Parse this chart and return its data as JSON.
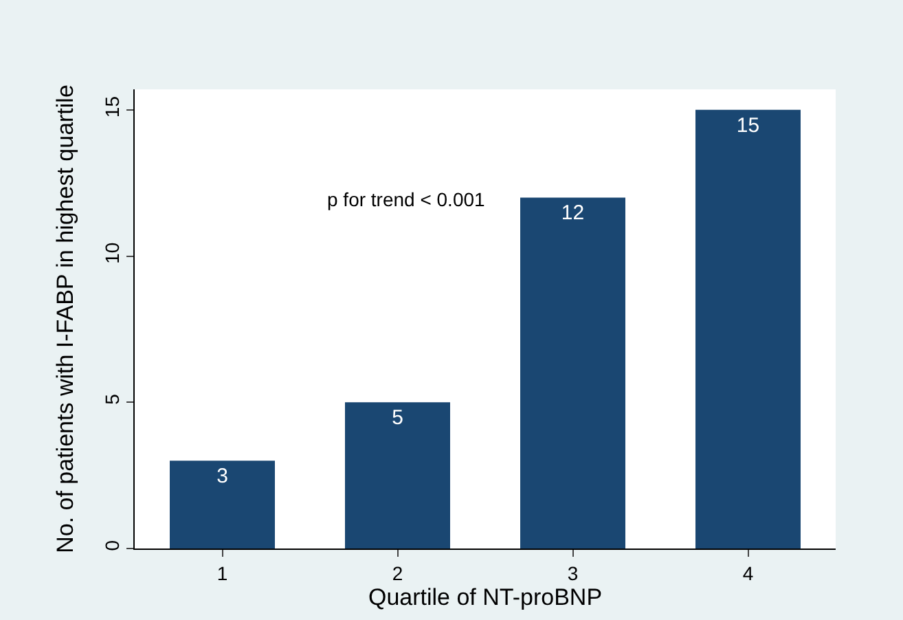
{
  "chart_data": {
    "type": "bar",
    "xlabel": "Quartile of NT-proBNP",
    "ylabel": "No. of patients with I-FABP in highest quartile",
    "categories": [
      "1",
      "2",
      "3",
      "4"
    ],
    "values": [
      3,
      5,
      12,
      15
    ],
    "color": "#1a4772",
    "ylim": [
      0,
      15.7
    ],
    "yticks": [
      0,
      5,
      10,
      15
    ],
    "data_labels": true,
    "annotations": [
      "p for trend < 0.001"
    ]
  }
}
